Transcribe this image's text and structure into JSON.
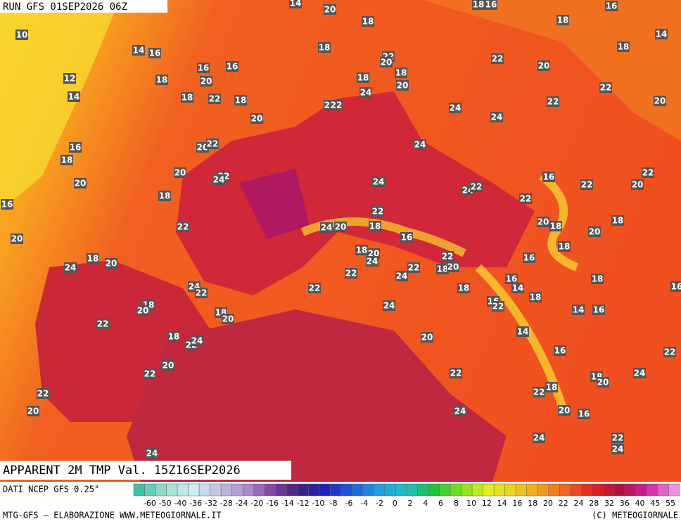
{
  "header": {
    "run": "RUN GFS 01SEP2026 06Z",
    "field": "APPARENT 2M TMP Val. 15Z16SEP2026"
  },
  "footer": {
    "source": "DATI NCEP GFS 0.25°",
    "credit": "MTG-GFS — ELABORAZIONE WWW.METEOGIORNALE.IT",
    "copyright": "(C) METEOGIORNALE"
  },
  "colorbar": {
    "labels": [
      "-60",
      "-50",
      "-40",
      "-36",
      "-32",
      "-28",
      "-24",
      "-20",
      "-16",
      "-14",
      "-12",
      "-10",
      "-8",
      "-6",
      "-4",
      "-2",
      "0",
      "2",
      "4",
      "6",
      "8",
      "10",
      "12",
      "14",
      "16",
      "18",
      "20",
      "22",
      "24",
      "28",
      "32",
      "36",
      "40",
      "45",
      "55"
    ],
    "colors": [
      "#40c0a0",
      "#a0e0d0",
      "#d0f0f0",
      "#c0c0e0",
      "#b090d0",
      "#8040a0",
      "#402080",
      "#2020c0",
      "#2060e0",
      "#20a0e0",
      "#20c0c0",
      "#20c040",
      "#80e020",
      "#e0f020",
      "#f0d020",
      "#f0a020",
      "#f06020",
      "#e02020",
      "#b01040",
      "#d020a0",
      "#f090e0"
    ]
  },
  "stations": [
    14,
    20,
    18,
    16,
    16,
    10,
    18,
    18,
    14,
    14,
    16,
    18,
    22,
    20,
    22,
    20,
    18,
    12,
    16,
    16,
    18,
    20,
    18,
    18,
    20,
    24,
    14,
    18,
    22,
    18,
    24,
    22,
    24,
    22,
    22,
    20,
    20,
    24,
    16,
    18,
    20,
    22,
    24,
    20,
    22,
    24,
    16,
    22,
    20,
    24,
    22,
    20,
    24,
    22,
    18,
    22,
    16,
    22,
    18,
    22,
    24,
    20,
    18,
    20,
    18,
    20,
    16,
    20,
    18,
    22,
    18,
    20,
    24,
    16,
    18,
    20,
    24,
    22,
    18,
    20,
    22,
    24,
    18,
    16,
    14,
    16,
    24,
    22,
    22,
    18,
    18,
    18,
    20,
    16,
    22,
    24,
    14,
    16,
    18,
    20,
    22,
    14,
    18,
    22,
    24,
    20,
    16,
    22,
    20,
    22,
    22,
    24,
    18,
    20,
    18,
    22,
    22,
    20,
    24,
    20,
    16,
    24,
    22,
    24,
    24
  ]
}
